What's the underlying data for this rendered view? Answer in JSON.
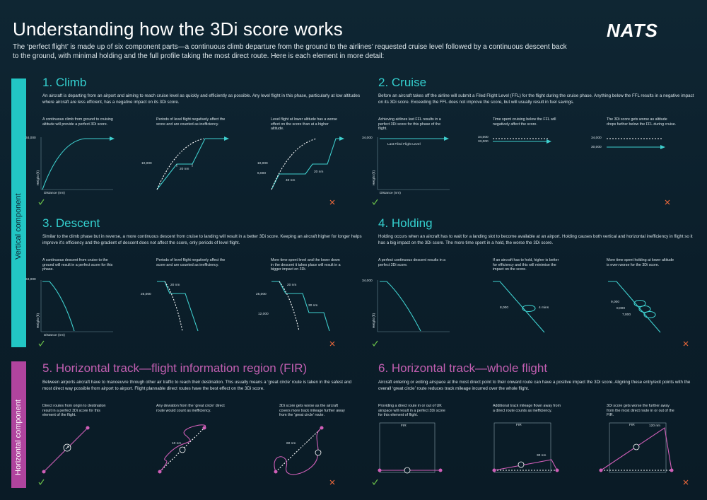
{
  "header": {
    "title": "Understanding how the 3Di score works",
    "logo": "NATS",
    "intro": "The ‘perfect flight’ is made up of six component parts—a continuous climb departure from the ground to the airlines’ requested cruise level followed by a continuous descent back to the ground, with minimal holding and the full profile taking the most direct route. Here is each element in more detail:"
  },
  "sidebar": {
    "vertical": "Vertical component",
    "horizontal": "Horizontal component"
  },
  "climb": {
    "title": "1. Climb",
    "desc": "An aircraft is departing from an airport and aiming to reach cruise level as quickly and efficiently as possible. Any level flight in this phase, particularly at low altitudes where aircraft are less efficient, has a negative impact on its 3Di score.",
    "notes": [
      "A continuous climb from ground to cruising altitude will provide a perfect 3Di score.",
      "Periods of level flight negatively affect the score and are counted as inefficiency.",
      "Level flight at lower altitude has a worse effect on the score than at a higher altitude."
    ],
    "labels": {
      "h34000": "34,000",
      "height": "Height (ft)",
      "distance": "Distance (nm)",
      "h10000": "10,000",
      "nm20": "20 nm",
      "h10000b": "10,000",
      "h6000": "6,000",
      "nm20b": "20 nm",
      "nm40": "40 nm"
    }
  },
  "cruise": {
    "title": "2. Cruise",
    "desc": "Before an aircraft takes off the airline will submit a Filed Flight Level (FFL) for the flight during the cruise phase. Anything below the FFL results in a negative impact on its 3Di score. Exceeding the FFL does not improve the score, but will usually result in fuel savings.",
    "notes": [
      "Achieving airlines last FFL results in a perfect 3Di score for this phase of the flight.",
      "Time spent cruising below the FFL will negatively affect the score.",
      "The 3Di score gets worse as altitude drops further below the FFL during cruise."
    ],
    "labels": {
      "h34000": "34,000",
      "ffl": "Last Filed Flight Level",
      "height": "Height (ft)",
      "distance": "Distance (nm)",
      "h34000b": "34,000",
      "h33000": "33,000",
      "h34000c": "34,000",
      "h30000": "30,000"
    }
  },
  "descent": {
    "title": "3. Descent",
    "desc": "Similar to the climb phase but in reverse, a more continuous descent from cruise to landing will result in a better 3Di score. Keeping an aircraft higher for longer helps improve it’s efficiency and the gradient of descent does not affect the score, only periods of level flight.",
    "notes": [
      "A continuous descent from cruise to the ground will result in a perfect score for this phase.",
      "Periods of level flight negatively affect the score and are counted as inefficiency.",
      "More time spent level and the lower down in the descent it takes place will result in a bigger impact on 3Di."
    ],
    "labels": {
      "h34000": "34,000",
      "height": "Height (ft)",
      "distance": "Distance (nm)",
      "h25000": "25,000",
      "nm20": "20 nm",
      "h25000b": "25,000",
      "h12000": "12,000",
      "nm20b": "20 nm",
      "nm30": "30 nm"
    }
  },
  "holding": {
    "title": "4. Holding",
    "desc": "Holding occurs when an aircraft has to wait for a landing slot to become available at an airport. Holding causes both vertical and horizontal inefficiency in flight so it has a big impact on the 3Di score. The more time spent in a hold, the worse the 3Di score.",
    "notes": [
      "A perfect continuous descent results in a perfect 3Di score.",
      "If an aircraft has to hold, higher is better for efficiency and this will minimise the impact on the score.",
      "More time spent holding at lower altitude is even worse for the 3Di score."
    ],
    "labels": {
      "h34000": "34,000",
      "height": "Height (ft)",
      "h8000": "8,000",
      "mins4": "4 mins",
      "h9000": "9,000",
      "h8000b": "8,000",
      "h7000": "7,000"
    }
  },
  "fir": {
    "title": "5. Horizontal track—flight information region (FIR)",
    "desc": "Between airports aircraft have to manoeuvre through other air traffic to reach their destination. This usually means a ‘great circle’ route is taken in the safest and most direct way possible from airport to airport. Flight plannable direct routes have the best effect on the 3Di score.",
    "notes": [
      "Direct routes from origin to destination result in a perfect 3Di score for this element of the flight.",
      "Any deviation from the ‘great circle’ direct route would count as inefficiency.",
      "3Di score gets worse as the aircraft covers more track mileage further away from the ‘great circle’ route."
    ],
    "labels": {
      "nm10": "10 nm",
      "nm60": "60 nm"
    }
  },
  "whole": {
    "title": "6. Horizontal track—whole flight",
    "desc": "Aircraft entering or exiting airspace at the most direct point to their onward route can have a positive impact the 3Di score. Aligning these entry/exit points with the overall ‘great circle’ route reduces track mileage incurred over the whole flight.",
    "notes": [
      "Providing a direct route in or out of UK airspace will result in a perfect 3Di score for this element of flight.",
      "Additional track mileage flown away from a direct route counts as inefficiency.",
      "3Di score gets worse the further away from the most direct route in or out of the FIR."
    ],
    "labels": {
      "fir1": "FIR",
      "fir2": "FIR",
      "fir3": "FIR",
      "nm30": "30 nm",
      "nm120": "120 nm"
    }
  },
  "colors": {
    "teal": "#34d0cf",
    "pink": "#c25fb1",
    "green": "#6cc24a",
    "orange": "#e8673a",
    "line": "#3fd0cf"
  }
}
